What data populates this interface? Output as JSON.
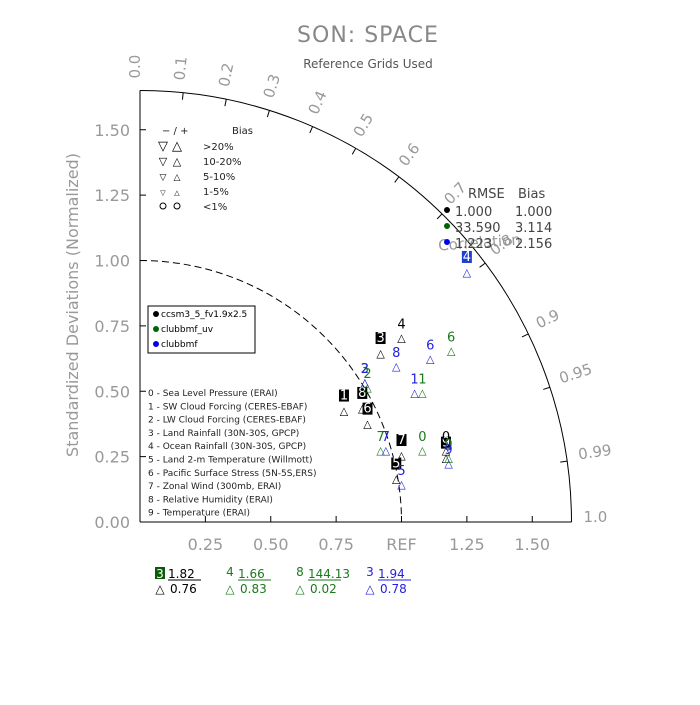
{
  "title": "SON: SPACE",
  "subtitle": "Reference Grids Used",
  "chart_data": {
    "type": "scatter",
    "diagram": "taylor",
    "title": "SON: SPACE",
    "subtitle": "Reference Grids Used",
    "ylabel": "Standardized Deviations (Normalized)",
    "ref_label": "REF",
    "xlim": [
      0,
      1.65
    ],
    "ylim": [
      0,
      1.65
    ],
    "x_tick_labels": [
      "0.00",
      "0.25",
      "0.50",
      "0.75",
      "REF",
      "1.25",
      "1.50"
    ],
    "y_tick_labels": [
      "0.00",
      "0.25",
      "0.50",
      "0.75",
      "1.00",
      "1.25",
      "1.50"
    ],
    "correlation_ticks": [
      "0.0",
      "0.1",
      "0.2",
      "0.3",
      "0.4",
      "0.5",
      "0.6",
      "0.7",
      "0.8",
      "0.9",
      "0.95",
      "0.99",
      "1.0"
    ],
    "correlation_values": [
      0.0,
      0.1,
      0.2,
      0.3,
      0.4,
      0.5,
      0.6,
      0.7,
      0.8,
      0.9,
      0.95,
      0.99,
      1.0
    ],
    "correlation_label": "Correlation",
    "bias_legend": {
      "header_sign": "− / +",
      "header": "Bias",
      "rows": [
        {
          "label": ">20%",
          "size": "large"
        },
        {
          "label": "10-20%",
          "size": "medium"
        },
        {
          "label": "5-10%",
          "size": "small"
        },
        {
          "label": "1-5%",
          "size": "tiny"
        },
        {
          "label": "<1%",
          "size": "circle"
        }
      ]
    },
    "rmse_table": {
      "header_rmse": "RMSE",
      "header_bias": "Bias",
      "rows": [
        {
          "rmse": "1.000",
          "bias": "1.000",
          "color": "#000000"
        },
        {
          "rmse": "33.590",
          "bias": "3.114",
          "color": "#006400"
        },
        {
          "rmse": "1.223",
          "bias": "2.156",
          "color": "#0000ee"
        }
      ]
    },
    "series": [
      {
        "name": "ccsm3_5_fv1.9x2.5",
        "color": "#000000",
        "points": [
          {
            "var": "1",
            "x": 0.78,
            "y": 0.43
          },
          {
            "var": "3",
            "x": 0.92,
            "y": 0.65
          },
          {
            "var": "4",
            "x": 1.0,
            "y": 0.71
          },
          {
            "var": "5",
            "x": 0.98,
            "y": 0.17
          },
          {
            "var": "6",
            "x": 0.87,
            "y": 0.38
          },
          {
            "var": "7",
            "x": 1.0,
            "y": 0.26
          },
          {
            "var": "8",
            "x": 0.85,
            "y": 0.44
          },
          {
            "var": "9",
            "x": 1.17,
            "y": 0.25
          },
          {
            "var": "0",
            "x": 1.17,
            "y": 0.28
          }
        ]
      },
      {
        "name": "clubbmf_uv",
        "color": "#1a7a1a",
        "points": [
          {
            "var": "7",
            "x": 0.92,
            "y": 0.28
          },
          {
            "var": "0",
            "x": 1.08,
            "y": 0.28
          },
          {
            "var": "6",
            "x": 1.19,
            "y": 0.66
          },
          {
            "var": "3",
            "x": 0.86,
            "y": 0.54
          },
          {
            "var": "1",
            "x": 1.08,
            "y": 0.5
          },
          {
            "var": "9",
            "x": 1.18,
            "y": 0.25
          },
          {
            "var": "2",
            "x": 0.87,
            "y": 0.52
          }
        ]
      },
      {
        "name": "clubbmf",
        "color": "#2222dd",
        "points": [
          {
            "var": "4",
            "x": 1.25,
            "y": 0.96
          },
          {
            "var": "6",
            "x": 1.11,
            "y": 0.63
          },
          {
            "var": "8",
            "x": 0.98,
            "y": 0.6
          },
          {
            "var": "1",
            "x": 1.05,
            "y": 0.5
          },
          {
            "var": "7",
            "x": 0.94,
            "y": 0.28
          },
          {
            "var": "9",
            "x": 1.18,
            "y": 0.23
          },
          {
            "var": "5",
            "x": 1.0,
            "y": 0.15
          },
          {
            "var": "2",
            "x": 0.86,
            "y": 0.54
          }
        ]
      }
    ],
    "model_legend": [
      {
        "name": "ccsm3_5_fv1.9x2.5",
        "color": "#000000"
      },
      {
        "name": "clubbmf_uv",
        "color": "#006400"
      },
      {
        "name": "clubbmf",
        "color": "#0000ee"
      }
    ],
    "variable_legend": [
      "0 - Sea Level Pressure (ERAI)",
      "1 - SW Cloud Forcing (CERES-EBAF)",
      "2 - LW Cloud Forcing (CERES-EBAF)",
      "3 - Land Rainfall (30N-30S, GPCP)",
      "4 - Ocean Rainfall (30N-30S, GPCP)",
      "5 - Land 2-m Temperature (Willmott)",
      "6 - Pacific Surface Stress (5N-5S,ERS)",
      "7 - Zonal Wind (300mb, ERAI)",
      "8 - Relative Humidity (ERAI)",
      "9 - Temperature (ERAI)"
    ],
    "out_of_range": [
      {
        "var": "3",
        "value": "1.82",
        "corr": "0.76",
        "color": "#000000",
        "boxed": true,
        "box_color": "#0a5a0a",
        "text_color": "#ffffff"
      },
      {
        "var": "4",
        "value": "1.66",
        "corr": "0.83",
        "color": "#1a7a1a",
        "boxed": false
      },
      {
        "var": "8",
        "value": "144.13",
        "corr": "0.02",
        "color": "#1a7a1a",
        "boxed": false
      },
      {
        "var": "3",
        "value": "1.94",
        "corr": "0.78",
        "color": "#2222dd",
        "boxed": false
      }
    ]
  }
}
